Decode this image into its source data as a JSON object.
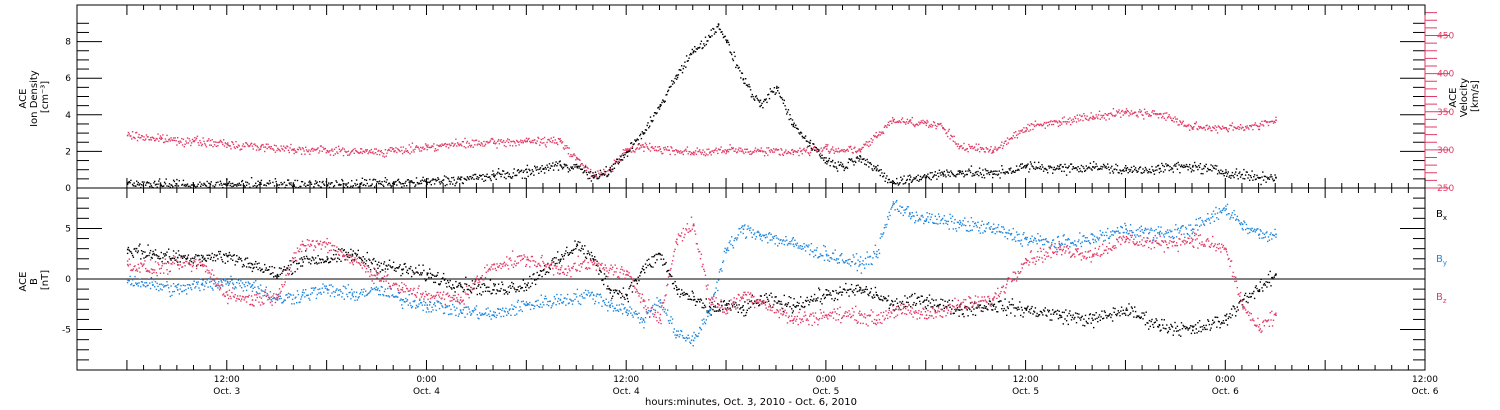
{
  "colors": {
    "black": "#000000",
    "blue": "#1f86dc",
    "pink": "#e23b66",
    "velocity_axis": "#e23b66"
  },
  "chart_data": [
    {
      "type": "scatter",
      "ylabel_lines": [
        "ACE",
        "Ion Density",
        "[cm⁻³]"
      ],
      "y2label_lines": [
        "ACE",
        "Velocity",
        "[km/s]"
      ],
      "ylim": [
        0,
        10
      ],
      "y_ticks": [
        "0",
        "2",
        "4",
        "6",
        "8"
      ],
      "y2lim": [
        250,
        490
      ],
      "y2_ticks": [
        "250",
        "300",
        "350",
        "400",
        "450"
      ],
      "series": [
        {
          "color": "black",
          "points": [
            [
              0,
              0.3
            ],
            [
              4,
              0.2
            ],
            [
              8,
              0.2
            ],
            [
              12,
              0.2
            ],
            [
              16,
              0.25
            ],
            [
              20,
              0.2
            ],
            [
              24,
              0.2
            ],
            [
              28,
              0.25
            ],
            [
              32,
              0.3
            ],
            [
              36,
              0.35
            ],
            [
              40,
              0.5
            ],
            [
              44,
              0.7
            ],
            [
              48,
              0.9
            ],
            [
              50,
              1.1
            ],
            [
              52,
              1.3
            ],
            [
              54,
              1.2
            ],
            [
              56,
              0.6
            ],
            [
              58,
              1.0
            ],
            [
              60,
              2.0
            ],
            [
              62,
              3.0
            ],
            [
              64,
              4.5
            ],
            [
              66,
              6.2
            ],
            [
              68,
              7.5
            ],
            [
              70,
              8.3
            ],
            [
              71,
              9.0
            ],
            [
              72,
              8.0
            ],
            [
              74,
              6.0
            ],
            [
              76,
              4.5
            ],
            [
              78,
              5.5
            ],
            [
              80,
              3.5
            ],
            [
              82,
              2.5
            ],
            [
              84,
              1.5
            ],
            [
              86,
              1.2
            ],
            [
              88,
              1.8
            ],
            [
              90,
              1.0
            ],
            [
              92,
              0.3
            ],
            [
              94,
              0.5
            ],
            [
              96,
              0.7
            ],
            [
              98,
              0.8
            ],
            [
              100,
              0.9
            ],
            [
              104,
              0.8
            ],
            [
              108,
              1.2
            ],
            [
              112,
              1.1
            ],
            [
              116,
              1.2
            ],
            [
              120,
              1.0
            ],
            [
              124,
              1.1
            ],
            [
              128,
              1.2
            ],
            [
              132,
              0.9
            ],
            [
              136,
              0.6
            ],
            [
              138,
              0.6
            ]
          ]
        },
        {
          "color": "pink",
          "points": [
            [
              0,
              320
            ],
            [
              4,
              315
            ],
            [
              8,
              312
            ],
            [
              12,
              308
            ],
            [
              16,
              305
            ],
            [
              20,
              302
            ],
            [
              24,
              300
            ],
            [
              28,
              298
            ],
            [
              32,
              299
            ],
            [
              36,
              305
            ],
            [
              40,
              308
            ],
            [
              44,
              310
            ],
            [
              48,
              312
            ],
            [
              52,
              312
            ],
            [
              54,
              290
            ],
            [
              56,
              265
            ],
            [
              58,
              275
            ],
            [
              60,
              300
            ],
            [
              62,
              305
            ],
            [
              64,
              302
            ],
            [
              66,
              300
            ],
            [
              68,
              298
            ],
            [
              70,
              298
            ],
            [
              72,
              300
            ],
            [
              76,
              300
            ],
            [
              80,
              298
            ],
            [
              84,
              302
            ],
            [
              88,
              300
            ],
            [
              90,
              318
            ],
            [
              92,
              340
            ],
            [
              94,
              338
            ],
            [
              96,
              336
            ],
            [
              98,
              330
            ],
            [
              100,
              305
            ],
            [
              104,
              300
            ],
            [
              108,
              330
            ],
            [
              112,
              338
            ],
            [
              116,
              345
            ],
            [
              120,
              350
            ],
            [
              124,
              348
            ],
            [
              128,
              330
            ],
            [
              132,
              330
            ],
            [
              136,
              332
            ],
            [
              138,
              340
            ]
          ]
        }
      ]
    },
    {
      "type": "scatter",
      "ylabel_lines": [
        "ACE",
        "B",
        "[nT]"
      ],
      "ylim": [
        -9,
        9
      ],
      "y_ticks": [
        "-5",
        "0",
        "5"
      ],
      "legend": [
        "Bx",
        "By",
        "Bz"
      ],
      "series": [
        {
          "name": "Bx",
          "color": "black",
          "points": [
            [
              0,
              3.0
            ],
            [
              3,
              2.5
            ],
            [
              6,
              2.2
            ],
            [
              9,
              2.2
            ],
            [
              12,
              2.3
            ],
            [
              15,
              1.5
            ],
            [
              18,
              0.5
            ],
            [
              21,
              2.0
            ],
            [
              24,
              2.0
            ],
            [
              27,
              2.5
            ],
            [
              30,
              1.5
            ],
            [
              33,
              1.0
            ],
            [
              36,
              0.5
            ],
            [
              40,
              -0.5
            ],
            [
              44,
              -1.0
            ],
            [
              48,
              -0.5
            ],
            [
              50,
              1.0
            ],
            [
              52,
              2.0
            ],
            [
              54,
              3.5
            ],
            [
              56,
              2.0
            ],
            [
              58,
              -1.0
            ],
            [
              60,
              -1.5
            ],
            [
              62,
              1.0
            ],
            [
              64,
              2.5
            ],
            [
              66,
              -1.0
            ],
            [
              68,
              -2.0
            ],
            [
              70,
              -3.0
            ],
            [
              72,
              -2.5
            ],
            [
              74,
              -3.0
            ],
            [
              76,
              -2.0
            ],
            [
              80,
              -2.5
            ],
            [
              84,
              -1.5
            ],
            [
              88,
              -1.0
            ],
            [
              90,
              -1.5
            ],
            [
              92,
              -2.5
            ],
            [
              96,
              -2.0
            ],
            [
              100,
              -3.0
            ],
            [
              104,
              -2.5
            ],
            [
              108,
              -3.0
            ],
            [
              112,
              -3.5
            ],
            [
              116,
              -4.0
            ],
            [
              120,
              -3.0
            ],
            [
              124,
              -4.5
            ],
            [
              128,
              -5.0
            ],
            [
              132,
              -4.0
            ],
            [
              134,
              -2.0
            ],
            [
              136,
              -1.0
            ],
            [
              138,
              0.5
            ]
          ]
        },
        {
          "name": "By",
          "color": "blue",
          "points": [
            [
              0,
              0.0
            ],
            [
              3,
              -0.5
            ],
            [
              6,
              -1.0
            ],
            [
              9,
              -0.5
            ],
            [
              12,
              -0.2
            ],
            [
              15,
              -0.5
            ],
            [
              18,
              -2.0
            ],
            [
              21,
              -1.5
            ],
            [
              24,
              -1.0
            ],
            [
              27,
              -1.5
            ],
            [
              30,
              -1.0
            ],
            [
              33,
              -2.0
            ],
            [
              36,
              -2.5
            ],
            [
              40,
              -3.0
            ],
            [
              44,
              -3.5
            ],
            [
              48,
              -2.5
            ],
            [
              52,
              -2.0
            ],
            [
              56,
              -1.5
            ],
            [
              58,
              -2.5
            ],
            [
              60,
              -3.0
            ],
            [
              62,
              -4.0
            ],
            [
              64,
              -2.0
            ],
            [
              66,
              -5.5
            ],
            [
              68,
              -6.0
            ],
            [
              70,
              -3.0
            ],
            [
              72,
              3.0
            ],
            [
              74,
              5.0
            ],
            [
              76,
              4.5
            ],
            [
              80,
              3.5
            ],
            [
              84,
              2.5
            ],
            [
              88,
              1.5
            ],
            [
              90,
              2.5
            ],
            [
              92,
              7.5
            ],
            [
              94,
              6.5
            ],
            [
              96,
              6.0
            ],
            [
              100,
              5.5
            ],
            [
              104,
              5.0
            ],
            [
              108,
              4.0
            ],
            [
              112,
              3.5
            ],
            [
              116,
              4.0
            ],
            [
              120,
              5.0
            ],
            [
              124,
              4.5
            ],
            [
              128,
              5.0
            ],
            [
              132,
              7.0
            ],
            [
              134,
              5.5
            ],
            [
              136,
              4.5
            ],
            [
              138,
              4.5
            ]
          ]
        },
        {
          "name": "Bz",
          "color": "pink",
          "points": [
            [
              0,
              1.5
            ],
            [
              3,
              1.0
            ],
            [
              6,
              1.5
            ],
            [
              9,
              1.5
            ],
            [
              12,
              -1.5
            ],
            [
              15,
              -2.0
            ],
            [
              18,
              -1.5
            ],
            [
              21,
              3.5
            ],
            [
              24,
              3.5
            ],
            [
              27,
              2.0
            ],
            [
              30,
              0.5
            ],
            [
              33,
              -1.0
            ],
            [
              36,
              -1.5
            ],
            [
              40,
              -2.0
            ],
            [
              44,
              1.5
            ],
            [
              48,
              2.0
            ],
            [
              52,
              1.0
            ],
            [
              56,
              1.5
            ],
            [
              60,
              0.5
            ],
            [
              62,
              -2.0
            ],
            [
              64,
              -4.0
            ],
            [
              66,
              4.0
            ],
            [
              68,
              5.5
            ],
            [
              70,
              -2.0
            ],
            [
              72,
              -3.0
            ],
            [
              74,
              -1.5
            ],
            [
              76,
              -2.0
            ],
            [
              80,
              -4.0
            ],
            [
              84,
              -3.5
            ],
            [
              88,
              -3.5
            ],
            [
              90,
              -4.0
            ],
            [
              92,
              -3.0
            ],
            [
              96,
              -3.5
            ],
            [
              100,
              -2.5
            ],
            [
              104,
              -2.0
            ],
            [
              108,
              2.0
            ],
            [
              112,
              3.0
            ],
            [
              116,
              2.5
            ],
            [
              120,
              4.0
            ],
            [
              124,
              3.5
            ],
            [
              128,
              4.0
            ],
            [
              132,
              3.0
            ],
            [
              134,
              -2.5
            ],
            [
              136,
              -5.0
            ],
            [
              138,
              -3.5
            ]
          ]
        }
      ]
    }
  ],
  "x_axis": {
    "xlim": [
      -6,
      156
    ],
    "ticks": [
      {
        "x": 12,
        "time": "12:00",
        "date": "Oct. 3"
      },
      {
        "x": 36,
        "time": "0:00",
        "date": "Oct. 4"
      },
      {
        "x": 60,
        "time": "12:00",
        "date": "Oct. 4"
      },
      {
        "x": 84,
        "time": "0:00",
        "date": "Oct. 5"
      },
      {
        "x": 108,
        "time": "12:00",
        "date": "Oct. 5"
      },
      {
        "x": 132,
        "time": "0:00",
        "date": "Oct. 6"
      },
      {
        "x": 156,
        "time": "12:00",
        "date": "Oct. 6"
      }
    ],
    "label": "hours:minutes, Oct.  3, 2010 - Oct.  6, 2010"
  }
}
